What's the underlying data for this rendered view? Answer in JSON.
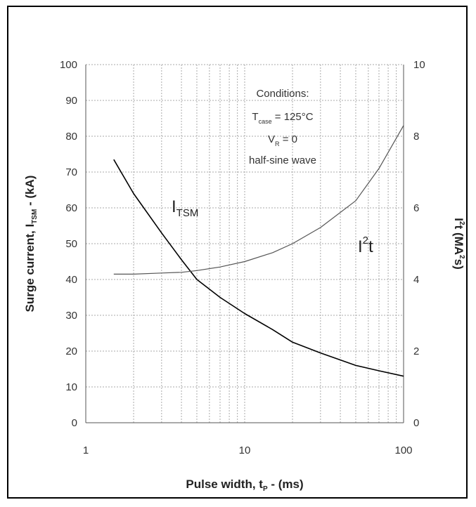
{
  "chart_data": {
    "type": "line",
    "xlabel": "Pulse width, t",
    "xlabel_sub": "P",
    "xlabel_suffix": " - (ms)",
    "ylabel": "Surge current, I",
    "ylabel_sub": "TSM",
    "ylabel_suffix": " - (kA)",
    "y2label": "I",
    "y2label_sup": "2",
    "y2label_suffix": "t (MA",
    "y2label_sup2": "2",
    "y2label_end": "s)",
    "x_scale": "log",
    "xlim": [
      1,
      100
    ],
    "ylim": [
      0,
      100
    ],
    "y2lim": [
      0,
      10
    ],
    "x_ticks": [
      "1",
      "10",
      "100"
    ],
    "y_ticks": [
      "0",
      "10",
      "20",
      "30",
      "40",
      "50",
      "60",
      "70",
      "80",
      "90",
      "100"
    ],
    "y2_ticks": [
      "0",
      "2",
      "4",
      "6",
      "8",
      "10"
    ],
    "grid": true,
    "annotation": {
      "title": "Conditions:",
      "line1_main": "T",
      "line1_sub": "case",
      "line1_rest": " = 125°C",
      "line2_main": "V",
      "line2_sub": "R",
      "line2_rest": " = 0",
      "line3": "half-sine wave"
    },
    "series": [
      {
        "label_main": "I",
        "label_sub": "TSM",
        "axis": "left",
        "color": "#000000",
        "x": [
          1.5,
          2,
          3,
          4,
          5,
          7,
          10,
          15,
          20,
          30,
          50,
          70,
          100
        ],
        "y": [
          73.5,
          64,
          53,
          45.5,
          40,
          35,
          30.5,
          26,
          22.5,
          19.5,
          16,
          14.5,
          13
        ]
      },
      {
        "label_main": "I",
        "label_sup": "2",
        "label_rest": "t",
        "axis": "right",
        "color": "#555555",
        "x": [
          1.5,
          2,
          3,
          4,
          5,
          7,
          10,
          15,
          20,
          30,
          50,
          70,
          100
        ],
        "y": [
          4.15,
          4.15,
          4.18,
          4.2,
          4.25,
          4.35,
          4.5,
          4.75,
          5.0,
          5.45,
          6.2,
          7.1,
          8.3
        ]
      }
    ]
  }
}
